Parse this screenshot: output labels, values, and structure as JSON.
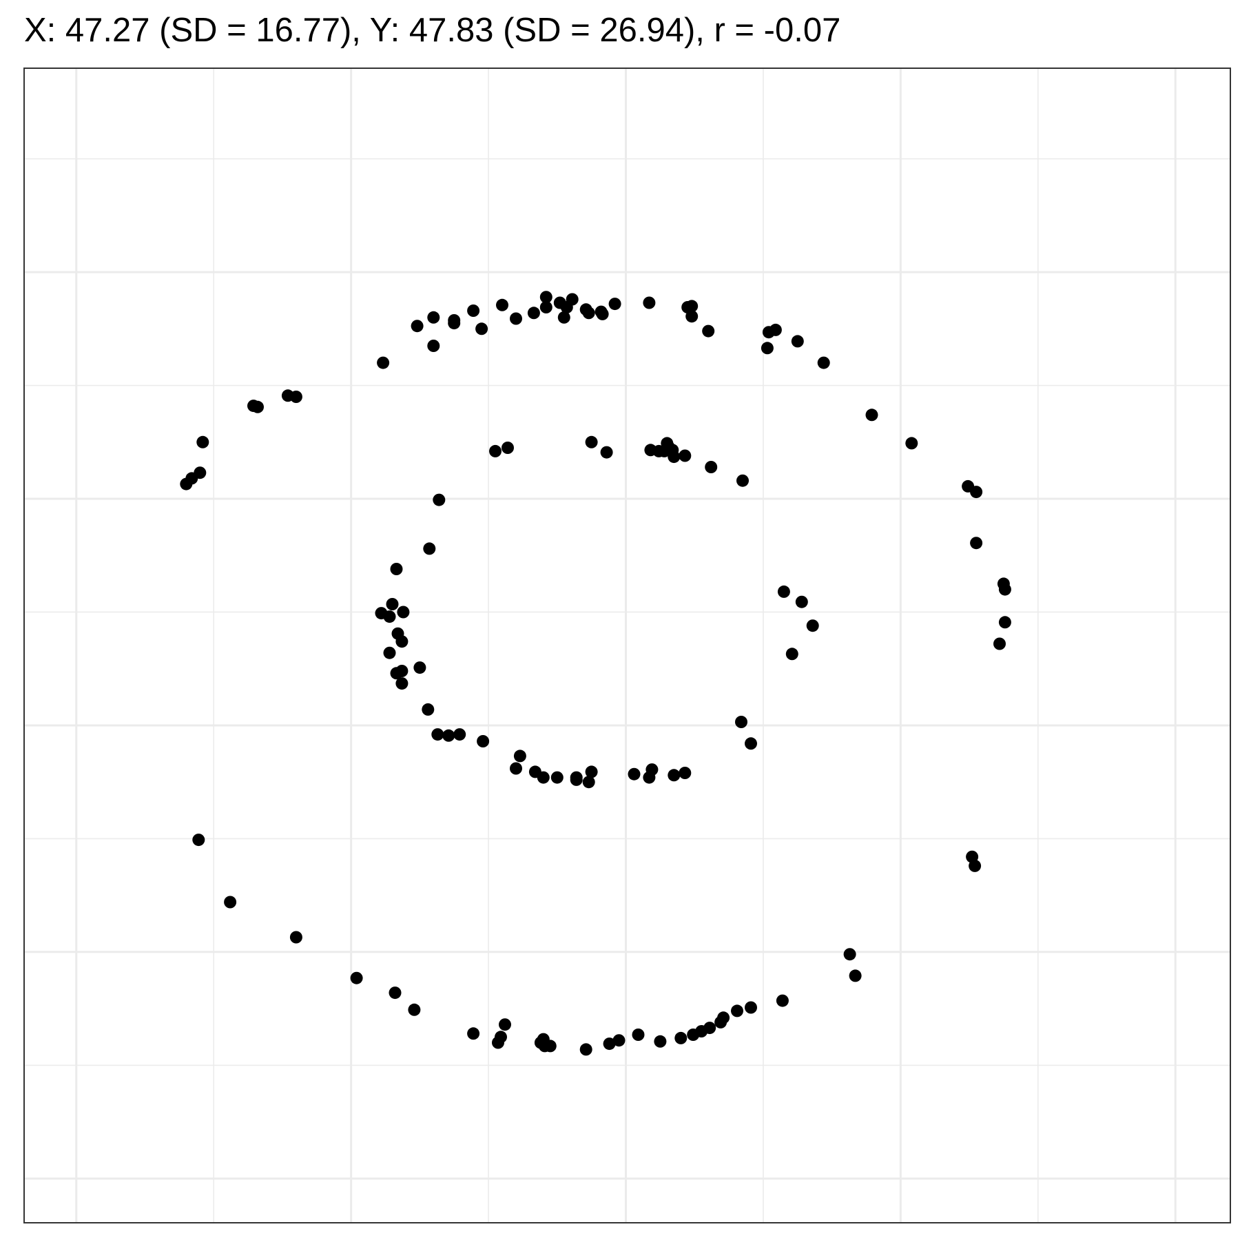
{
  "chart_data": {
    "type": "scatter",
    "title": "X: 47.27 (SD = 16.77), Y: 47.83 (SD = 26.94), r = -0.07",
    "xlabel": "",
    "ylabel": "",
    "xlim": [
      6.2,
      94.0
    ],
    "ylim": [
      -3.9,
      98.0
    ],
    "x_gridlines": [
      10,
      20,
      30,
      40,
      50,
      60,
      70,
      80,
      90
    ],
    "y_gridlines": [
      0,
      10,
      20,
      30,
      40,
      50,
      60,
      70,
      80,
      90
    ],
    "grid": true,
    "colors": {
      "point": "#000000",
      "grid": "#ebebeb",
      "border": "#333333",
      "background": "#ffffff"
    },
    "points": [
      [
        32.33,
        72.0
      ],
      [
        34.81,
        75.25
      ],
      [
        36.0,
        76.0
      ],
      [
        36.0,
        73.5
      ],
      [
        37.5,
        75.75
      ],
      [
        37.5,
        75.5
      ],
      [
        38.9,
        76.6
      ],
      [
        39.5,
        75.0
      ],
      [
        41.0,
        77.1
      ],
      [
        42.0,
        75.9
      ],
      [
        43.3,
        76.4
      ],
      [
        44.2,
        77.8
      ],
      [
        44.2,
        76.9
      ],
      [
        45.2,
        77.3
      ],
      [
        45.5,
        76.0
      ],
      [
        45.7,
        76.9
      ],
      [
        46.1,
        77.6
      ],
      [
        47.1,
        76.7
      ],
      [
        47.3,
        76.4
      ],
      [
        48.2,
        76.5
      ],
      [
        48.3,
        76.3
      ],
      [
        49.2,
        77.2
      ],
      [
        51.7,
        77.3
      ],
      [
        54.5,
        76.9
      ],
      [
        54.8,
        77.0
      ],
      [
        54.8,
        76.1
      ],
      [
        56.0,
        74.8
      ],
      [
        60.4,
        74.7
      ],
      [
        60.9,
        74.9
      ],
      [
        60.3,
        73.3
      ],
      [
        62.5,
        73.9
      ],
      [
        64.4,
        72.0
      ],
      [
        67.9,
        67.4
      ],
      [
        70.8,
        64.9
      ],
      [
        74.9,
        61.1
      ],
      [
        75.5,
        60.6
      ],
      [
        75.5,
        56.1
      ],
      [
        77.5,
        52.5
      ],
      [
        77.6,
        52.0
      ],
      [
        77.6,
        49.1
      ],
      [
        77.2,
        47.2
      ],
      [
        75.2,
        28.4
      ],
      [
        75.4,
        27.6
      ],
      [
        66.3,
        19.8
      ],
      [
        66.7,
        17.9
      ],
      [
        61.4,
        15.7
      ],
      [
        59.1,
        15.1
      ],
      [
        58.1,
        14.8
      ],
      [
        57.1,
        14.2
      ],
      [
        56.9,
        13.8
      ],
      [
        56.1,
        13.3
      ],
      [
        55.5,
        13.0
      ],
      [
        54.9,
        12.7
      ],
      [
        54.0,
        12.4
      ],
      [
        52.5,
        12.1
      ],
      [
        50.9,
        12.7
      ],
      [
        49.5,
        12.2
      ],
      [
        48.8,
        11.9
      ],
      [
        47.1,
        11.4
      ],
      [
        44.5,
        11.7
      ],
      [
        44.1,
        11.7
      ],
      [
        44.0,
        12.3
      ],
      [
        43.8,
        12.0
      ],
      [
        41.2,
        13.6
      ],
      [
        40.9,
        12.5
      ],
      [
        40.7,
        12.0
      ],
      [
        38.9,
        12.8
      ],
      [
        34.6,
        14.9
      ],
      [
        33.2,
        16.4
      ],
      [
        30.4,
        17.7
      ],
      [
        26.0,
        21.3
      ],
      [
        21.2,
        24.4
      ],
      [
        18.9,
        29.9
      ],
      [
        18.4,
        61.8
      ],
      [
        18.0,
        61.3
      ],
      [
        19.0,
        62.3
      ],
      [
        19.2,
        65.0
      ],
      [
        22.9,
        68.2
      ],
      [
        23.2,
        68.1
      ],
      [
        25.4,
        69.1
      ],
      [
        26.0,
        69.0
      ],
      [
        36.4,
        59.9
      ],
      [
        35.7,
        55.6
      ],
      [
        33.3,
        53.8
      ],
      [
        33.0,
        50.7
      ],
      [
        32.2,
        49.9
      ],
      [
        32.8,
        49.6
      ],
      [
        33.8,
        50.0
      ],
      [
        33.4,
        48.1
      ],
      [
        33.7,
        47.4
      ],
      [
        32.8,
        46.4
      ],
      [
        33.3,
        44.6
      ],
      [
        33.7,
        44.8
      ],
      [
        35.0,
        45.1
      ],
      [
        33.7,
        43.7
      ],
      [
        35.6,
        41.4
      ],
      [
        36.3,
        39.2
      ],
      [
        37.1,
        39.1
      ],
      [
        37.9,
        39.2
      ],
      [
        39.6,
        38.6
      ],
      [
        42.3,
        37.3
      ],
      [
        42.0,
        36.2
      ],
      [
        43.4,
        35.9
      ],
      [
        44.0,
        35.4
      ],
      [
        45.0,
        35.4
      ],
      [
        46.4,
        35.4
      ],
      [
        46.4,
        35.2
      ],
      [
        47.3,
        35.0
      ],
      [
        47.5,
        35.9
      ],
      [
        50.6,
        35.7
      ],
      [
        51.7,
        35.4
      ],
      [
        51.9,
        36.1
      ],
      [
        53.5,
        35.6
      ],
      [
        54.3,
        35.8
      ],
      [
        58.4,
        40.3
      ],
      [
        59.1,
        38.4
      ],
      [
        61.5,
        51.8
      ],
      [
        62.8,
        50.9
      ],
      [
        63.6,
        48.8
      ],
      [
        62.1,
        46.3
      ],
      [
        58.5,
        61.6
      ],
      [
        56.2,
        62.8
      ],
      [
        54.3,
        63.8
      ],
      [
        53.5,
        63.7
      ],
      [
        53.4,
        64.3
      ],
      [
        53.1,
        64.6
      ],
      [
        52.8,
        64.2
      ],
      [
        52.4,
        64.2
      ],
      [
        53.0,
        64.9
      ],
      [
        51.8,
        64.3
      ],
      [
        47.5,
        65.0
      ],
      [
        48.6,
        64.1
      ],
      [
        40.5,
        64.2
      ],
      [
        41.4,
        64.5
      ]
    ]
  }
}
